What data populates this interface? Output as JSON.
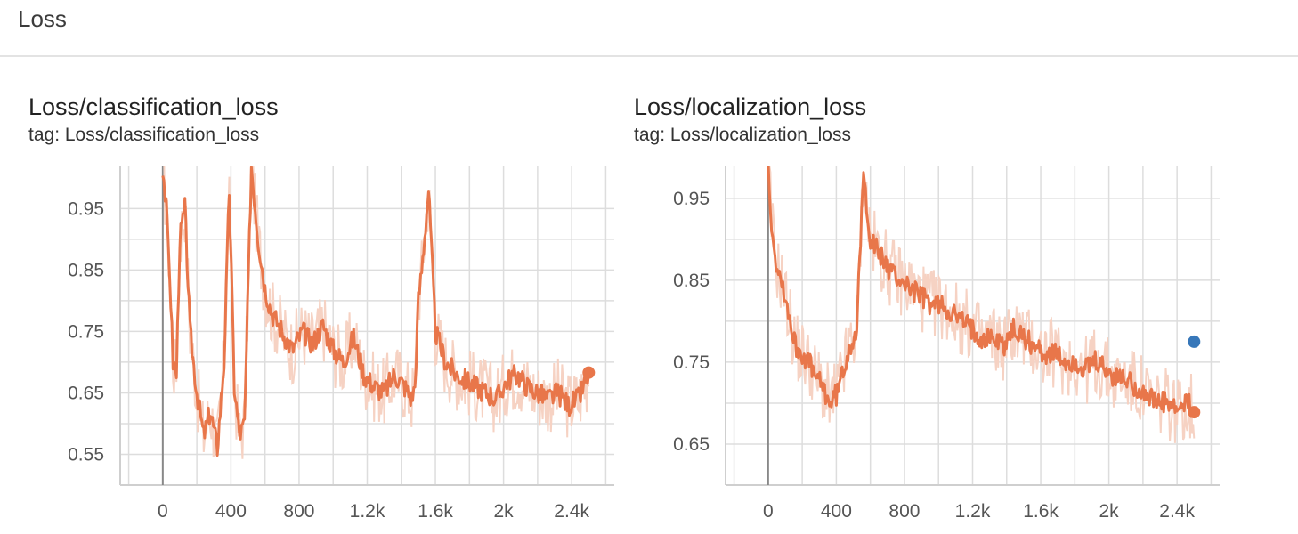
{
  "section": {
    "title": "Loss"
  },
  "colors": {
    "series": "#e8764a",
    "raw": "#f6d2c3",
    "grid": "#dddddd",
    "highlight": "#3777b9"
  },
  "chart_data": [
    {
      "type": "line",
      "title": "Loss/classification_loss",
      "subtitle": "tag: Loss/classification_loss",
      "xlabel": "",
      "ylabel": "",
      "xlim": [
        -250,
        2650
      ],
      "ylim": [
        0.5,
        1.02
      ],
      "xticks": [
        0,
        400,
        800,
        1200,
        1600,
        2000,
        2400
      ],
      "xtick_labels": [
        "0",
        "400",
        "800",
        "1.2k",
        "1.6k",
        "2k",
        "2.4k"
      ],
      "yticks": [
        0.55,
        0.65,
        0.75,
        0.85,
        0.95
      ],
      "ytick_labels": [
        "0.55",
        "0.65",
        "0.75",
        "0.85",
        "0.95"
      ],
      "grid": true,
      "series": [
        {
          "name": "",
          "x": [
            0,
            20,
            40,
            60,
            80,
            100,
            130,
            160,
            200,
            240,
            280,
            320,
            360,
            390,
            420,
            450,
            480,
            520,
            560,
            600,
            640,
            700,
            760,
            820,
            880,
            940,
            1000,
            1060,
            1120,
            1180,
            1240,
            1300,
            1360,
            1420,
            1460,
            1480,
            1500,
            1520,
            1560,
            1600,
            1660,
            1720,
            1780,
            1840,
            1900,
            1960,
            2020,
            2080,
            2140,
            2200,
            2260,
            2320,
            2380,
            2440,
            2500
          ],
          "y": [
            1.02,
            0.95,
            0.85,
            0.7,
            0.68,
            0.9,
            0.95,
            0.75,
            0.65,
            0.58,
            0.62,
            0.56,
            0.7,
            0.98,
            0.66,
            0.58,
            0.6,
            1.02,
            0.9,
            0.82,
            0.78,
            0.75,
            0.72,
            0.75,
            0.73,
            0.76,
            0.72,
            0.7,
            0.74,
            0.68,
            0.66,
            0.65,
            0.68,
            0.66,
            0.64,
            0.66,
            0.8,
            0.85,
            0.98,
            0.75,
            0.7,
            0.68,
            0.67,
            0.66,
            0.65,
            0.64,
            0.67,
            0.68,
            0.66,
            0.65,
            0.64,
            0.65,
            0.63,
            0.64,
            0.68
          ]
        }
      ],
      "last_point": {
        "x": 2500,
        "y": 0.683
      }
    },
    {
      "type": "line",
      "title": "Loss/localization_loss",
      "subtitle": "tag: Loss/localization_loss",
      "xlabel": "",
      "ylabel": "",
      "xlim": [
        -250,
        2650
      ],
      "ylim": [
        0.6,
        0.99
      ],
      "xticks": [
        0,
        400,
        800,
        1200,
        1600,
        2000,
        2400
      ],
      "xtick_labels": [
        "0",
        "400",
        "800",
        "1.2k",
        "1.6k",
        "2k",
        "2.4k"
      ],
      "yticks": [
        0.65,
        0.75,
        0.85,
        0.95
      ],
      "ytick_labels": [
        "0.65",
        "0.75",
        "0.85",
        "0.95"
      ],
      "grid": true,
      "series": [
        {
          "name": "",
          "x": [
            0,
            20,
            40,
            60,
            80,
            100,
            130,
            160,
            200,
            240,
            280,
            320,
            360,
            400,
            440,
            480,
            520,
            560,
            600,
            660,
            720,
            780,
            840,
            900,
            960,
            1020,
            1080,
            1140,
            1200,
            1260,
            1320,
            1380,
            1440,
            1500,
            1560,
            1620,
            1680,
            1740,
            1800,
            1860,
            1920,
            1980,
            2040,
            2100,
            2160,
            2220,
            2280,
            2340,
            2400,
            2460,
            2500
          ],
          "y": [
            0.99,
            0.92,
            0.88,
            0.86,
            0.85,
            0.83,
            0.8,
            0.77,
            0.76,
            0.75,
            0.73,
            0.72,
            0.7,
            0.71,
            0.74,
            0.77,
            0.79,
            0.98,
            0.9,
            0.88,
            0.86,
            0.85,
            0.84,
            0.83,
            0.82,
            0.82,
            0.81,
            0.8,
            0.79,
            0.78,
            0.78,
            0.77,
            0.79,
            0.78,
            0.77,
            0.76,
            0.76,
            0.75,
            0.75,
            0.74,
            0.75,
            0.74,
            0.73,
            0.73,
            0.72,
            0.71,
            0.7,
            0.7,
            0.69,
            0.7,
            0.69
          ]
        }
      ],
      "last_point": {
        "x": 2500,
        "y": 0.689
      },
      "highlight_point": {
        "x": 2500,
        "y": 0.775
      }
    }
  ]
}
